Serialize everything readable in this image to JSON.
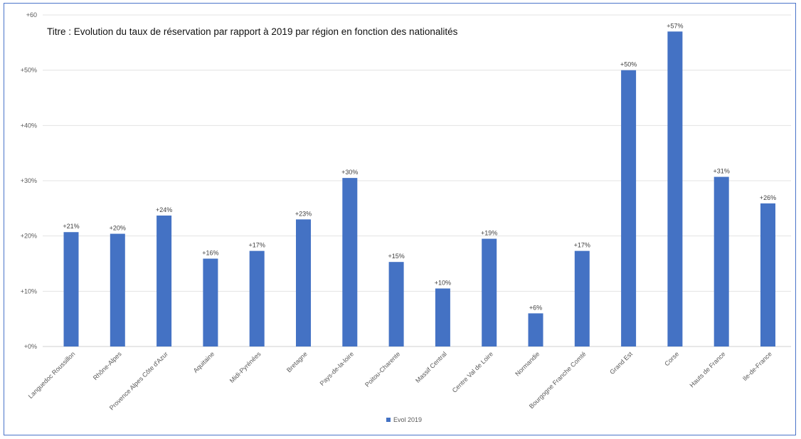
{
  "chart_data": {
    "type": "bar",
    "title": "Titre : Evolution du taux de réservation par rapport à 2019 par région en fonction des nationalités",
    "xlabel": "",
    "ylabel": "",
    "ylim": [
      0,
      60
    ],
    "yticks": [
      0,
      10,
      20,
      30,
      40,
      50,
      60
    ],
    "ytick_labels": [
      "+0%",
      "+10%",
      "+20%",
      "+30%",
      "+40%",
      "+50%",
      "+60"
    ],
    "grid": true,
    "legend_position": "bottom",
    "categories": [
      "Languedoc Roussillon",
      "Rhône-Alpes",
      "Provence Alpes Côte d'Azur",
      "Aquitaine",
      "Midi-Pyrénées",
      "Bretagne",
      "Pays-de-la-loire",
      "Poitou-Charente",
      "Massif Central",
      "Centre Val de Loire",
      "Normandie",
      "Bourgogne Franche Comté",
      "Grand Est",
      "Corse",
      "Hauts de France",
      "Ile-de-France"
    ],
    "series": [
      {
        "name": "Evol 2019",
        "color": "#4472c4",
        "values": [
          20.7,
          20.4,
          23.7,
          15.9,
          17.3,
          23.0,
          30.5,
          15.3,
          10.5,
          19.5,
          6.0,
          17.3,
          50.0,
          57.0,
          30.7,
          25.9
        ],
        "data_labels": [
          "+21%",
          "+20%",
          "+24%",
          "+16%",
          "+17%",
          "+23%",
          "+30%",
          "+15%",
          "+10%",
          "+19%",
          "+6%",
          "+17%",
          "+50%",
          "+57%",
          "+31%",
          "+26%"
        ]
      }
    ]
  }
}
